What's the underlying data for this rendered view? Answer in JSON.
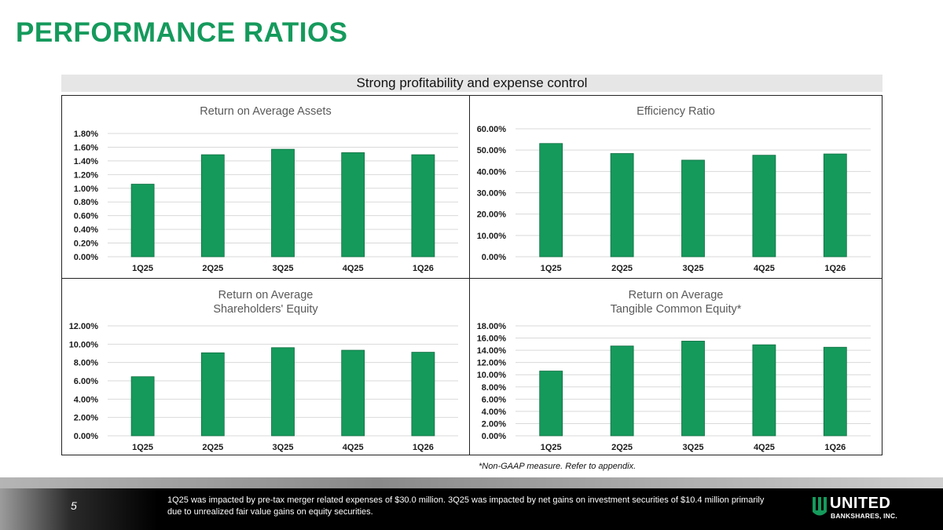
{
  "page": {
    "title": "PERFORMANCE RATIOS",
    "subtitle": "Strong profitability and expense control",
    "footnote": "*Non-GAAP measure.  Refer to appendix.",
    "page_number": "5",
    "footer_note": "1Q25 was impacted by pre-tax merger related expenses of $30.0 million. 3Q25 was impacted by net gains on investment securities of $10.4 million primarily due to unrealized fair value gains on equity securities.",
    "logo": {
      "name": "UNITED",
      "sub": "BANKSHARES, INC.",
      "icon": "united-bankshares-logo-icon"
    },
    "colors": {
      "accent": "#159a5c",
      "bar": "#159a5c",
      "footer": "#000000"
    }
  },
  "chart_data": [
    {
      "type": "bar",
      "title": "Return on Average Assets",
      "categories": [
        "1Q25",
        "2Q25",
        "3Q25",
        "4Q25",
        "1Q26"
      ],
      "values": [
        1.06,
        1.49,
        1.57,
        1.52,
        1.49
      ],
      "ylim": [
        0,
        1.8
      ],
      "yticks": [
        "0.00%",
        "0.20%",
        "0.40%",
        "0.60%",
        "0.80%",
        "1.00%",
        "1.20%",
        "1.40%",
        "1.60%",
        "1.80%"
      ],
      "grid": true
    },
    {
      "type": "bar",
      "title": "Efficiency Ratio",
      "categories": [
        "1Q25",
        "2Q25",
        "3Q25",
        "4Q25",
        "1Q26"
      ],
      "values": [
        53.1,
        48.4,
        45.3,
        47.6,
        48.2
      ],
      "ylim": [
        0,
        60
      ],
      "yticks": [
        "0.00%",
        "10.00%",
        "20.00%",
        "30.00%",
        "40.00%",
        "50.00%",
        "60.00%"
      ],
      "grid": true
    },
    {
      "type": "bar",
      "title": "Return on Average\nShareholders' Equity",
      "categories": [
        "1Q25",
        "2Q25",
        "3Q25",
        "4Q25",
        "1Q26"
      ],
      "values": [
        6.45,
        9.06,
        9.62,
        9.34,
        9.12
      ],
      "ylim": [
        0,
        12
      ],
      "yticks": [
        "0.00%",
        "2.00%",
        "4.00%",
        "6.00%",
        "8.00%",
        "10.00%",
        "12.00%"
      ],
      "grid": true
    },
    {
      "type": "bar",
      "title": "Return on Average\nTangible Common Equity*",
      "categories": [
        "1Q25",
        "2Q25",
        "3Q25",
        "4Q25",
        "1Q26"
      ],
      "values": [
        10.6,
        14.7,
        15.5,
        14.9,
        14.5
      ],
      "ylim": [
        0,
        18
      ],
      "yticks": [
        "0.00%",
        "2.00%",
        "4.00%",
        "6.00%",
        "8.00%",
        "10.00%",
        "12.00%",
        "14.00%",
        "16.00%",
        "18.00%"
      ],
      "grid": true
    }
  ]
}
